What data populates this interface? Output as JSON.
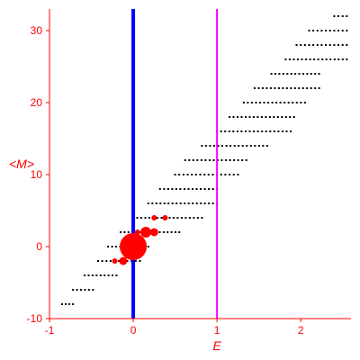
{
  "chart_data": {
    "type": "scatter",
    "xlabel": "E",
    "ylabel": "<M>",
    "xlim": [
      -1,
      2.6
    ],
    "ylim": [
      -10,
      33
    ],
    "x_ticks": [
      -1,
      0,
      1,
      2
    ],
    "y_ticks": [
      -10,
      0,
      10,
      20,
      30
    ],
    "grid": false,
    "colors": {
      "axes": "#ff0000",
      "dots": "#000000",
      "highlight": "#ff0000",
      "line_e0": "#0000ff",
      "line_e1": "#ff00ff"
    },
    "vertical_lines": [
      {
        "x": 0,
        "color": "#0000ff"
      },
      {
        "x": 1,
        "color": "#ff00ff"
      }
    ],
    "dot_rows": [
      {
        "y": -8,
        "x_from": -0.85,
        "x_to": -0.72,
        "n": 4
      },
      {
        "y": -6,
        "x_from": -0.72,
        "x_to": -0.48,
        "n": 6
      },
      {
        "y": -4,
        "x_from": -0.58,
        "x_to": -0.2,
        "n": 9
      },
      {
        "y": -2,
        "x_from": -0.42,
        "x_to": 0.08,
        "n": 11
      },
      {
        "y": 0,
        "x_from": -0.3,
        "x_to": 0.18,
        "n": 11
      },
      {
        "y": 2,
        "x_from": -0.15,
        "x_to": 0.55,
        "n": 16
      },
      {
        "y": 4,
        "x_from": 0.0,
        "x_to": 0.82,
        "n": 18
      },
      {
        "y": 6,
        "x_from": 0.18,
        "x_to": 1.0,
        "n": 18
      },
      {
        "y": 8,
        "x_from": 0.32,
        "x_to": 1.0,
        "n": 15
      },
      {
        "y": 10,
        "x_from": 0.5,
        "x_to": 1.25,
        "n": 16
      },
      {
        "y": 12,
        "x_from": 0.62,
        "x_to": 1.35,
        "n": 16
      },
      {
        "y": 14,
        "x_from": 0.82,
        "x_to": 1.6,
        "n": 17
      },
      {
        "y": 16,
        "x_from": 1.0,
        "x_to": 1.88,
        "n": 19
      },
      {
        "y": 18,
        "x_from": 1.15,
        "x_to": 1.92,
        "n": 17
      },
      {
        "y": 20,
        "x_from": 1.32,
        "x_to": 2.05,
        "n": 16
      },
      {
        "y": 22,
        "x_from": 1.45,
        "x_to": 2.22,
        "n": 17
      },
      {
        "y": 24,
        "x_from": 1.65,
        "x_to": 2.22,
        "n": 13
      },
      {
        "y": 26,
        "x_from": 1.82,
        "x_to": 2.55,
        "n": 16
      },
      {
        "y": 28,
        "x_from": 1.95,
        "x_to": 2.55,
        "n": 13
      },
      {
        "y": 30,
        "x_from": 2.1,
        "x_to": 2.55,
        "n": 10
      },
      {
        "y": 32,
        "x_from": 2.4,
        "x_to": 2.55,
        "n": 4
      }
    ],
    "highlight_points": [
      {
        "x": 0,
        "y": 0,
        "size": 5
      },
      {
        "x": 0.15,
        "y": 2,
        "size": 2
      },
      {
        "x": 0.25,
        "y": 2,
        "size": 1.5
      },
      {
        "x": -0.12,
        "y": -2,
        "size": 1.5
      },
      {
        "x": -0.22,
        "y": -2,
        "size": 1
      },
      {
        "x": 0.05,
        "y": 2,
        "size": 1
      },
      {
        "x": 0.25,
        "y": 4,
        "size": 1
      },
      {
        "x": 0.38,
        "y": 4,
        "size": 1
      }
    ]
  }
}
